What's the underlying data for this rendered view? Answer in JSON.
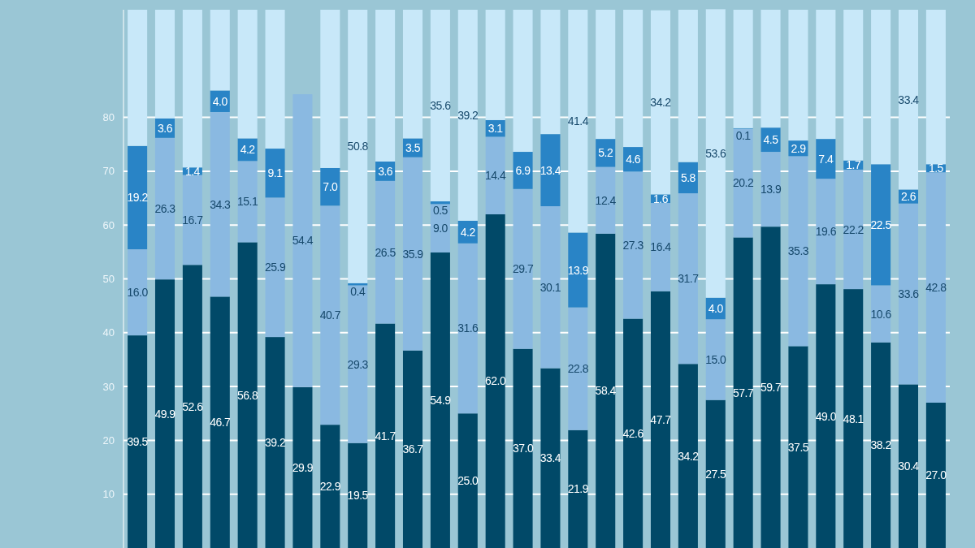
{
  "chart_data": {
    "type": "bar",
    "stacked": true,
    "categories": [
      null,
      null,
      null,
      null,
      null,
      null,
      null,
      null,
      null,
      null,
      null,
      null,
      null,
      null,
      null,
      null,
      null,
      null,
      null,
      null,
      null,
      null,
      null,
      null,
      null,
      null,
      null,
      null,
      null,
      null
    ],
    "series": [
      {
        "color": "#014968",
        "values": [
          39.5,
          49.9,
          52.6,
          46.7,
          56.8,
          39.2,
          29.9,
          22.9,
          19.5,
          41.7,
          36.7,
          54.9,
          25.0,
          62.0,
          37.0,
          33.4,
          21.9,
          58.4,
          42.6,
          47.7,
          34.2,
          27.5,
          57.7,
          59.7,
          37.5,
          49.0,
          48.1,
          38.2,
          30.4,
          27.0
        ],
        "value_labels": [
          "39.5",
          "49.9",
          "52.6",
          "46.7",
          "56.8",
          "39.2",
          "29.9",
          "22.9",
          "19.5",
          "41.7",
          "36.7",
          "54.9",
          "25.0",
          "62.0",
          "37.0",
          "33.4",
          "21.9",
          "58.4",
          "42.6",
          "47.7",
          "34.2",
          "27.5",
          "57.7",
          "59.7",
          "37.5",
          "49.0",
          "48.1",
          "38.2",
          "30.4",
          "27.0"
        ]
      },
      {
        "color": "#8ab9e1",
        "values": [
          16.0,
          26.3,
          16.7,
          34.3,
          15.1,
          25.9,
          54.4,
          40.7,
          29.3,
          26.5,
          35.9,
          9.0,
          31.6,
          14.4,
          29.7,
          30.1,
          22.8,
          12.4,
          27.3,
          16.4,
          31.7,
          15.0,
          20.2,
          13.9,
          35.3,
          19.6,
          22.2,
          10.6,
          33.6,
          42.8
        ],
        "value_labels": [
          "16.0",
          "26.3",
          "16.7",
          "34.3",
          "15.1",
          "25.9",
          "54.4",
          "40.7",
          "29.3",
          "26.5",
          "35.9",
          "9.0",
          "31.6",
          "14.4",
          "29.7",
          "30.1",
          "22.8",
          "12.4",
          "27.3",
          "16.4",
          "31.7",
          "15.0",
          "20.2",
          "13.9",
          "35.3",
          "19.6",
          "22.2",
          "10.6",
          "33.6",
          "42.8"
        ]
      },
      {
        "color": "#2984c6",
        "values": [
          19.2,
          3.6,
          1.4,
          4.0,
          4.2,
          9.1,
          null,
          7.0,
          0.4,
          3.6,
          3.5,
          0.5,
          4.2,
          3.1,
          6.9,
          13.4,
          13.9,
          5.2,
          4.6,
          1.6,
          5.8,
          4.0,
          0.1,
          4.5,
          2.9,
          7.4,
          1.7,
          22.5,
          2.6,
          1.5
        ],
        "value_labels": [
          "19.2",
          "3.6",
          "1.4",
          "4.0",
          "4.2",
          "9.1",
          null,
          "7.0",
          "0.4",
          "3.6",
          "3.5",
          "0.5",
          "4.2",
          "3.1",
          "6.9",
          "13.4",
          "13.9",
          "5.2",
          "4.6",
          "1.6",
          "5.8",
          "4.0",
          "0.1",
          "4.5",
          "2.9",
          "7.4",
          "1.7",
          "22.5",
          "2.6",
          "1.5"
        ]
      },
      {
        "color": "#c8e8f9",
        "values": [
          25.3,
          20.2,
          29.3,
          15.0,
          23.9,
          25.8,
          null,
          29.4,
          50.8,
          28.2,
          23.9,
          35.6,
          39.2,
          20.5,
          26.4,
          23.1,
          41.4,
          24.0,
          25.5,
          34.2,
          28.3,
          53.6,
          22.0,
          21.9,
          24.3,
          24.0,
          28.0,
          28.7,
          33.4,
          28.7
        ],
        "value_labels": [
          null,
          null,
          null,
          null,
          null,
          null,
          null,
          null,
          "50.8",
          null,
          null,
          "35.6",
          "39.2",
          null,
          null,
          null,
          "41.4",
          null,
          null,
          "34.2",
          null,
          "53.6",
          null,
          null,
          null,
          null,
          null,
          null,
          "33.4",
          null
        ]
      }
    ],
    "ylim": [
      0,
      100
    ],
    "yticks": [
      10,
      20,
      30,
      40,
      50,
      60,
      70,
      80
    ],
    "grid": "y",
    "tick_labels": "y"
  }
}
